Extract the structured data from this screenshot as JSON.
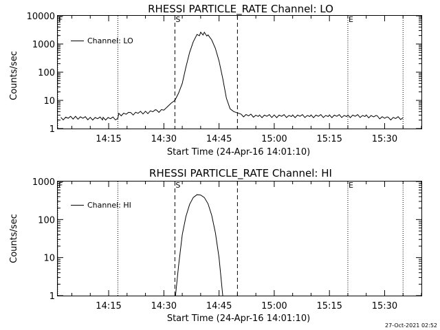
{
  "timestamp": "27-Oct-2021 02:52",
  "marker_labels": {
    "start": "S",
    "end": "E",
    "f": "F"
  },
  "chart_data": [
    {
      "type": "line",
      "title": "RHESSI PARTICLE_RATE Channel: LO",
      "xlabel": "Start Time (24-Apr-16 14:01:10)",
      "ylabel": "Counts/sec",
      "yscale": "log",
      "ylim": [
        1,
        10000
      ],
      "xlim": [
        "14:01:10",
        "15:40:00"
      ],
      "yticks": [
        1,
        10,
        100,
        1000,
        10000
      ],
      "ytick_labels": [
        "1",
        "10",
        "100",
        "1000",
        "10000"
      ],
      "xticks": [
        "14:15",
        "14:30",
        "14:45",
        "15:00",
        "15:15",
        "15:30"
      ],
      "grid": false,
      "legend": {
        "position": "top-left",
        "entries": [
          "Channel: LO"
        ]
      },
      "markers": {
        "dashed": [
          "14:33:00",
          "14:50:00"
        ],
        "dotted": [
          "14:01:10",
          "14:17:30",
          "15:20:00",
          "15:35:00"
        ]
      },
      "series": [
        {
          "name": "Channel: LO",
          "points": [
            [
              "14:02:00",
              2.3
            ],
            [
              "14:06:00",
              2.5
            ],
            [
              "14:10:00",
              2.3
            ],
            [
              "14:13:30",
              2.3
            ],
            [
              "14:17:30",
              2.3
            ],
            [
              "14:17:45",
              3.2
            ],
            [
              "14:21:00",
              3.4
            ],
            [
              "14:25:00",
              3.8
            ],
            [
              "14:28:00",
              4.2
            ],
            [
              "14:30:00",
              4.5
            ],
            [
              "14:31:00",
              6
            ],
            [
              "14:32:00",
              8
            ],
            [
              "14:33:00",
              10
            ],
            [
              "14:34:00",
              18
            ],
            [
              "14:35:00",
              40
            ],
            [
              "14:36:00",
              150
            ],
            [
              "14:37:00",
              500
            ],
            [
              "14:38:00",
              1200
            ],
            [
              "14:39:00",
              2000
            ],
            [
              "14:40:00",
              2400
            ],
            [
              "14:41:00",
              2400
            ],
            [
              "14:42:00",
              2100
            ],
            [
              "14:43:00",
              1400
            ],
            [
              "14:44:00",
              700
            ],
            [
              "14:45:00",
              250
            ],
            [
              "14:46:00",
              60
            ],
            [
              "14:47:00",
              12
            ],
            [
              "14:48:00",
              5
            ],
            [
              "14:49:00",
              4
            ],
            [
              "14:51:00",
              3
            ],
            [
              "14:56:00",
              2.8
            ],
            [
              "15:00:00",
              2.8
            ],
            [
              "15:05:00",
              2.8
            ],
            [
              "15:10:00",
              2.8
            ],
            [
              "15:15:00",
              2.8
            ],
            [
              "15:20:00",
              2.8
            ],
            [
              "15:25:00",
              2.8
            ],
            [
              "15:28:00",
              2.6
            ],
            [
              "15:31:00",
              2.3
            ],
            [
              "15:35:00",
              2.4
            ]
          ]
        }
      ]
    },
    {
      "type": "line",
      "title": "RHESSI PARTICLE_RATE Channel: HI",
      "xlabel": "Start Time (24-Apr-16 14:01:10)",
      "ylabel": "Counts/sec",
      "yscale": "log",
      "ylim": [
        1,
        1000
      ],
      "xlim": [
        "14:01:10",
        "15:40:00"
      ],
      "yticks": [
        1,
        10,
        100,
        1000
      ],
      "ytick_labels": [
        "1",
        "10",
        "100",
        "1000"
      ],
      "xticks": [
        "14:15",
        "14:30",
        "14:45",
        "15:00",
        "15:15",
        "15:30"
      ],
      "grid": false,
      "legend": {
        "position": "top-left",
        "entries": [
          "Channel: HI"
        ]
      },
      "markers": {
        "dashed": [
          "14:33:00",
          "14:50:00"
        ],
        "dotted": [
          "14:01:10",
          "14:17:30",
          "15:20:00",
          "15:35:00"
        ]
      },
      "series": [
        {
          "name": "Channel: HI",
          "points": [
            [
              "14:33:10",
              1
            ],
            [
              "14:34:00",
              6
            ],
            [
              "14:35:00",
              40
            ],
            [
              "14:36:00",
              120
            ],
            [
              "14:37:00",
              250
            ],
            [
              "14:38:00",
              380
            ],
            [
              "14:39:00",
              450
            ],
            [
              "14:40:00",
              440
            ],
            [
              "14:41:00",
              380
            ],
            [
              "14:42:00",
              260
            ],
            [
              "14:43:00",
              130
            ],
            [
              "14:44:00",
              45
            ],
            [
              "14:45:00",
              10
            ],
            [
              "14:46:00",
              1
            ]
          ]
        }
      ]
    }
  ]
}
